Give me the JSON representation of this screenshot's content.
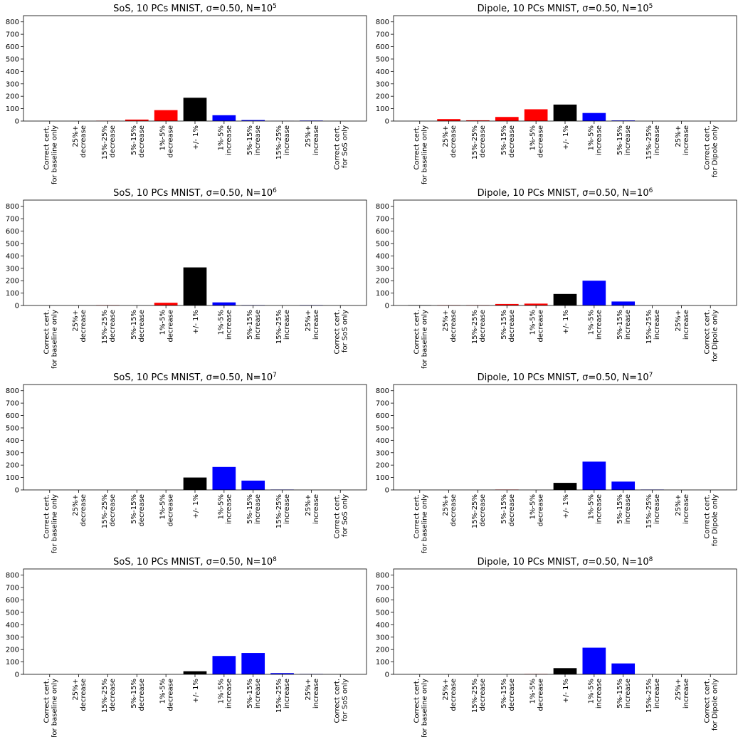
{
  "chart_data": [
    {
      "type": "bar",
      "title": "SoS, 10 PCs MNIST, σ=0.50, N=10",
      "title_exponent": "5",
      "categories": [
        "Correct cert.\nfor baseline only",
        "25%+\ndecrease",
        "15%-25%\ndecrease",
        "5%-15%\ndecrease",
        "1%-5%\ndecrease",
        "+/- 1%",
        "1%-5%\nincrease",
        "5%-15%\nincrease",
        "15%-25%\nincrease",
        "25%+\nincrease",
        "Correct cert.\nfor SoS only"
      ],
      "values": [
        0,
        0,
        3,
        12,
        88,
        188,
        47,
        8,
        1,
        4,
        0
      ],
      "colors": [
        "#000000",
        "#ff0000",
        "#ff0000",
        "#ff0000",
        "#ff0000",
        "#000000",
        "#0000ff",
        "#0000ff",
        "#0000ff",
        "#0000ff",
        "#000000"
      ],
      "ylim": [
        0,
        850
      ],
      "yticks": [
        0,
        100,
        200,
        300,
        400,
        500,
        600,
        700,
        800
      ]
    },
    {
      "type": "bar",
      "title": "Dipole, 10 PCs MNIST, σ=0.50, N=10",
      "title_exponent": "5",
      "categories": [
        "Correct cert.\nfor baseline only",
        "25%+\ndecrease",
        "15%-25%\ndecrease",
        "5%-15%\ndecrease",
        "1%-5%\ndecrease",
        "+/- 1%",
        "1%-5%\nincrease",
        "5%-15%\nincrease",
        "15%-25%\nincrease",
        "25%+\nincrease",
        "Correct cert.\nfor Dipole only"
      ],
      "values": [
        0,
        16,
        6,
        33,
        95,
        133,
        65,
        5,
        0,
        0,
        0
      ],
      "colors": [
        "#000000",
        "#ff0000",
        "#ff0000",
        "#ff0000",
        "#ff0000",
        "#000000",
        "#0000ff",
        "#0000ff",
        "#0000ff",
        "#0000ff",
        "#000000"
      ],
      "ylim": [
        0,
        850
      ],
      "yticks": [
        0,
        100,
        200,
        300,
        400,
        500,
        600,
        700,
        800
      ]
    },
    {
      "type": "bar",
      "title": "SoS, 10 PCs MNIST, σ=0.50, N=10",
      "title_exponent": "6",
      "categories": [
        "Correct cert.\nfor baseline only",
        "25%+\ndecrease",
        "15%-25%\ndecrease",
        "5%-15%\ndecrease",
        "1%-5%\ndecrease",
        "+/- 1%",
        "1%-5%\nincrease",
        "5%-15%\nincrease",
        "15%-25%\nincrease",
        "25%+\nincrease",
        "Correct cert.\nfor SoS only"
      ],
      "values": [
        0,
        0,
        3,
        0,
        22,
        307,
        25,
        3,
        0,
        3,
        0
      ],
      "colors": [
        "#000000",
        "#ff0000",
        "#ff0000",
        "#ff0000",
        "#ff0000",
        "#000000",
        "#0000ff",
        "#0000ff",
        "#0000ff",
        "#0000ff",
        "#000000"
      ],
      "ylim": [
        0,
        850
      ],
      "yticks": [
        0,
        100,
        200,
        300,
        400,
        500,
        600,
        700,
        800
      ]
    },
    {
      "type": "bar",
      "title": "Dipole, 10 PCs MNIST, σ=0.50, N=10",
      "title_exponent": "6",
      "categories": [
        "Correct cert.\nfor baseline only",
        "25%+\ndecrease",
        "15%-25%\ndecrease",
        "5%-15%\ndecrease",
        "1%-5%\ndecrease",
        "+/- 1%",
        "1%-5%\nincrease",
        "5%-15%\nincrease",
        "15%-25%\nincrease",
        "25%+\nincrease",
        "Correct cert.\nfor Dipole only"
      ],
      "values": [
        3,
        3,
        3,
        12,
        15,
        93,
        200,
        32,
        0,
        0,
        0
      ],
      "colors": [
        "#000000",
        "#ff0000",
        "#ff0000",
        "#ff0000",
        "#ff0000",
        "#000000",
        "#0000ff",
        "#0000ff",
        "#0000ff",
        "#0000ff",
        "#000000"
      ],
      "ylim": [
        0,
        850
      ],
      "yticks": [
        0,
        100,
        200,
        300,
        400,
        500,
        600,
        700,
        800
      ]
    },
    {
      "type": "bar",
      "title": "SoS, 10 PCs MNIST, σ=0.50, N=10",
      "title_exponent": "7",
      "categories": [
        "Correct cert.\nfor baseline only",
        "25%+\ndecrease",
        "15%-25%\ndecrease",
        "5%-15%\ndecrease",
        "1%-5%\ndecrease",
        "+/- 1%",
        "1%-5%\nincrease",
        "5%-15%\nincrease",
        "15%-25%\nincrease",
        "25%+\nincrease",
        "Correct cert.\nfor SoS only"
      ],
      "values": [
        0,
        0,
        0,
        0,
        0,
        100,
        185,
        75,
        3,
        0,
        0
      ],
      "colors": [
        "#000000",
        "#ff0000",
        "#ff0000",
        "#ff0000",
        "#ff0000",
        "#000000",
        "#0000ff",
        "#0000ff",
        "#0000ff",
        "#0000ff",
        "#000000"
      ],
      "ylim": [
        0,
        850
      ],
      "yticks": [
        0,
        100,
        200,
        300,
        400,
        500,
        600,
        700,
        800
      ]
    },
    {
      "type": "bar",
      "title": "Dipole, 10 PCs MNIST, σ=0.50, N=10",
      "title_exponent": "7",
      "categories": [
        "Correct cert.\nfor baseline only",
        "25%+\ndecrease",
        "15%-25%\ndecrease",
        "5%-15%\ndecrease",
        "1%-5%\ndecrease",
        "+/- 1%",
        "1%-5%\nincrease",
        "5%-15%\nincrease",
        "15%-25%\nincrease",
        "25%+\nincrease",
        "Correct cert.\nfor Dipole only"
      ],
      "values": [
        0,
        0,
        0,
        3,
        0,
        57,
        228,
        67,
        3,
        0,
        0
      ],
      "colors": [
        "#000000",
        "#ff0000",
        "#ff0000",
        "#ff0000",
        "#ff0000",
        "#000000",
        "#0000ff",
        "#0000ff",
        "#0000ff",
        "#0000ff",
        "#000000"
      ],
      "ylim": [
        0,
        850
      ],
      "yticks": [
        0,
        100,
        200,
        300,
        400,
        500,
        600,
        700,
        800
      ]
    },
    {
      "type": "bar",
      "title": "SoS, 10 PCs MNIST, σ=0.50, N=10",
      "title_exponent": "8",
      "categories": [
        "Correct cert.\nfor baseline only",
        "25%+\ndecrease",
        "15%-25%\ndecrease",
        "5%-15%\ndecrease",
        "1%-5%\ndecrease",
        "+/- 1%",
        "1%-5%\nincrease",
        "5%-15%\nincrease",
        "15%-25%\nincrease",
        "25%+\nincrease",
        "Correct cert.\nfor SoS only"
      ],
      "values": [
        0,
        0,
        0,
        0,
        0,
        25,
        148,
        172,
        10,
        3,
        0
      ],
      "colors": [
        "#000000",
        "#ff0000",
        "#ff0000",
        "#ff0000",
        "#ff0000",
        "#000000",
        "#0000ff",
        "#0000ff",
        "#0000ff",
        "#0000ff",
        "#000000"
      ],
      "ylim": [
        0,
        850
      ],
      "yticks": [
        0,
        100,
        200,
        300,
        400,
        500,
        600,
        700,
        800
      ]
    },
    {
      "type": "bar",
      "title": "Dipole, 10 PCs MNIST, σ=0.50, N=10",
      "title_exponent": "8",
      "categories": [
        "Correct cert.\nfor baseline only",
        "25%+\ndecrease",
        "15%-25%\ndecrease",
        "5%-15%\ndecrease",
        "1%-5%\ndecrease",
        "+/- 1%",
        "1%-5%\nincrease",
        "5%-15%\nincrease",
        "15%-25%\nincrease",
        "25%+\nincrease",
        "Correct cert.\nfor Dipole only"
      ],
      "values": [
        0,
        0,
        0,
        0,
        3,
        50,
        215,
        88,
        0,
        0,
        0
      ],
      "colors": [
        "#000000",
        "#ff0000",
        "#ff0000",
        "#ff0000",
        "#ff0000",
        "#000000",
        "#0000ff",
        "#0000ff",
        "#0000ff",
        "#0000ff",
        "#000000"
      ],
      "ylim": [
        0,
        850
      ],
      "yticks": [
        0,
        100,
        200,
        300,
        400,
        500,
        600,
        700,
        800
      ]
    }
  ]
}
